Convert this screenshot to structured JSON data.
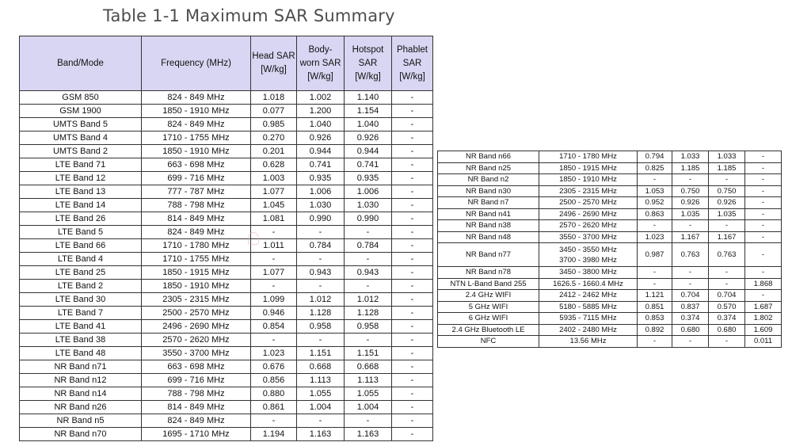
{
  "title": "Table 1-1 Maximum SAR Summary",
  "left_table": {
    "headers": {
      "band": "Band/Mode",
      "freq": "Frequency (MHz)",
      "head_l1": "Head SAR",
      "head_l2": "[W/kg]",
      "body_l1": "Body-",
      "body_l2": "worn SAR",
      "body_l3": "[W/kg]",
      "hotspot_l1": "Hotspot",
      "hotspot_l2": "SAR",
      "hotspot_l3": "[W/kg]",
      "phablet_l1": "Phablet",
      "phablet_l2": "SAR",
      "phablet_l3": "[W/kg]"
    },
    "rows": [
      [
        "GSM 850",
        "824 - 849 MHz",
        "1.018",
        "1.002",
        "1.140",
        "-"
      ],
      [
        "GSM 1900",
        "1850 - 1910 MHz",
        "0.077",
        "1.200",
        "1.154",
        "-"
      ],
      [
        "UMTS Band 5",
        "824 - 849 MHz",
        "0.985",
        "1.040",
        "1.040",
        "-"
      ],
      [
        "UMTS Band 4",
        "1710 - 1755 MHz",
        "0.270",
        "0.926",
        "0.926",
        "-"
      ],
      [
        "UMTS Band 2",
        "1850 - 1910 MHz",
        "0.201",
        "0.944",
        "0.944",
        "-"
      ],
      [
        "LTE Band 71",
        "663 - 698 MHz",
        "0.628",
        "0.741",
        "0.741",
        "-"
      ],
      [
        "LTE Band 12",
        "699 - 716 MHz",
        "1.003",
        "0.935",
        "0.935",
        "-"
      ],
      [
        "LTE Band 13",
        "777 - 787 MHz",
        "1.077",
        "1.006",
        "1.006",
        "-"
      ],
      [
        "LTE Band 14",
        "788 - 798 MHz",
        "1.045",
        "1.030",
        "1.030",
        "-"
      ],
      [
        "LTE Band 26",
        "814 - 849 MHz",
        "1.081",
        "0.990",
        "0.990",
        "-"
      ],
      [
        "LTE Band 5",
        "824 - 849 MHz",
        "-",
        "-",
        "-",
        "-"
      ],
      [
        "LTE Band 66",
        "1710 - 1780 MHz",
        "1.011",
        "0.784",
        "0.784",
        "-"
      ],
      [
        "LTE Band 4",
        "1710 - 1755 MHz",
        "-",
        "-",
        "-",
        "-"
      ],
      [
        "LTE Band 25",
        "1850 - 1915 MHz",
        "1.077",
        "0.943",
        "0.943",
        "-"
      ],
      [
        "LTE Band 2",
        "1850 - 1910 MHz",
        "-",
        "-",
        "-",
        "-"
      ],
      [
        "LTE Band 30",
        "2305 - 2315 MHz",
        "1.099",
        "1.012",
        "1.012",
        "-"
      ],
      [
        "LTE Band 7",
        "2500 - 2570 MHz",
        "0.946",
        "1.128",
        "1.128",
        "-"
      ],
      [
        "LTE Band 41",
        "2496 - 2690 MHz",
        "0.854",
        "0.958",
        "0.958",
        "-"
      ],
      [
        "LTE Band 38",
        "2570 - 2620 MHz",
        "-",
        "-",
        "-",
        "-"
      ],
      [
        "LTE Band 48",
        "3550 - 3700 MHz",
        "1.023",
        "1.151",
        "1.151",
        "-"
      ],
      [
        "NR Band n71",
        "663 - 698 MHz",
        "0.676",
        "0.668",
        "0.668",
        "-"
      ],
      [
        "NR Band n12",
        "699 - 716 MHz",
        "0.856",
        "1.113",
        "1.113",
        "-"
      ],
      [
        "NR Band n14",
        "788 - 798 MHz",
        "0.880",
        "1.055",
        "1.055",
        "-"
      ],
      [
        "NR Band n26",
        "814 - 849 MHz",
        "0.861",
        "1.004",
        "1.004",
        "-"
      ],
      [
        "NR Band n5",
        "824 - 849 MHz",
        "-",
        "-",
        "-",
        "-"
      ],
      [
        "NR Band n70",
        "1695 - 1710 MHz",
        "1.194",
        "1.163",
        "1.163",
        "-"
      ]
    ]
  },
  "right_table": {
    "rows_a": [
      [
        "NR Band n66",
        "1710 - 1780 MHz",
        "0.794",
        "1.033",
        "1.033",
        "-"
      ],
      [
        "NR Band n25",
        "1850 - 1915 MHz",
        "0.825",
        "1.185",
        "1.185",
        "-"
      ],
      [
        "NR Band n2",
        "1850 - 1910 MHz",
        "-",
        "-",
        "-",
        "-"
      ],
      [
        "NR Band n30",
        "2305 - 2315 MHz",
        "1.053",
        "0.750",
        "0.750",
        "-"
      ],
      [
        "NR Band n7",
        "2500 - 2570 MHz",
        "0.952",
        "0.926",
        "0.926",
        "-"
      ],
      [
        "NR Band n41",
        "2496 - 2690 MHz",
        "0.863",
        "1.035",
        "1.035",
        "-"
      ],
      [
        "NR Band n38",
        "2570 - 2620 MHz",
        "-",
        "-",
        "-",
        "-"
      ],
      [
        "NR Band n48",
        "3550 - 3700 MHz",
        "1.023",
        "1.167",
        "1.167",
        "-"
      ]
    ],
    "n77": {
      "band": "NR Band n77",
      "freq_1": "3450 - 3550 MHz",
      "freq_2": "3700 - 3980 MHz",
      "head": "0.987",
      "body": "0.763",
      "hotspot": "0.763",
      "phablet": "-"
    },
    "rows_b": [
      [
        "NR Band n78",
        "3450 - 3800 MHz",
        "-",
        "-",
        "-",
        "-"
      ],
      [
        "NTN L-Band Band 255",
        "1626.5 - 1660.4 MHz",
        "-",
        "-",
        "-",
        "1.868"
      ],
      [
        "2.4 GHz WIFI",
        "2412 - 2462 MHz",
        "1.121",
        "0.704",
        "0.704",
        "-"
      ],
      [
        "5 GHz WIFI",
        "5180 - 5885 MHz",
        "0.851",
        "0.837",
        "0.570",
        "1.687"
      ],
      [
        "6 GHz WIFI",
        "5935 - 7115 MHz",
        "0.853",
        "0.374",
        "0.374",
        "1.802"
      ],
      [
        "2.4 GHz Bluetooth LE",
        "2402 - 2480 MHz",
        "0.892",
        "0.680",
        "0.680",
        "1.609"
      ],
      [
        "NFC",
        "13.56 MHz",
        "-",
        "-",
        "-",
        "0.011"
      ]
    ]
  }
}
